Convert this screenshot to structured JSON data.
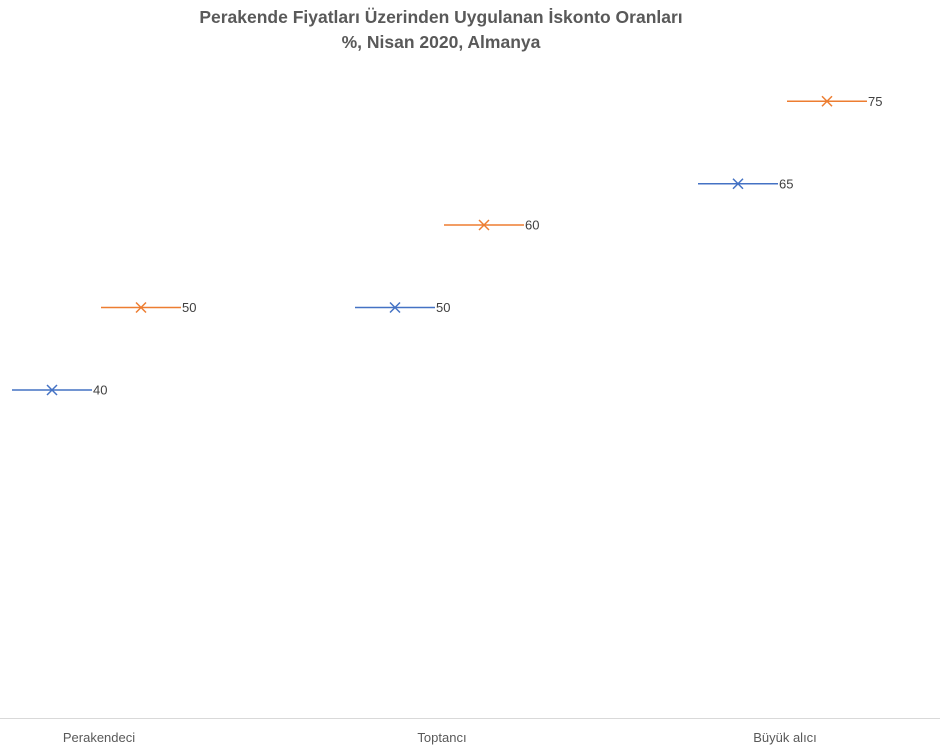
{
  "chart_data": {
    "type": "line",
    "title": "Perakende Fiyatları Üzerinden Uygulanan İskonto Oranları",
    "subtitle": "%, Nisan 2020, Almanya",
    "categories": [
      "Perakendeci",
      "Toptancı",
      "Büyük alıcı"
    ],
    "series": [
      {
        "values": [
          40,
          50,
          65
        ],
        "color": "#4472C4"
      },
      {
        "values": [
          50,
          60,
          75
        ],
        "color": "#ED7D31"
      }
    ],
    "marker": "x",
    "data_labels": true,
    "ylim": [
      0,
      80
    ],
    "grid": false,
    "legend": "none"
  }
}
